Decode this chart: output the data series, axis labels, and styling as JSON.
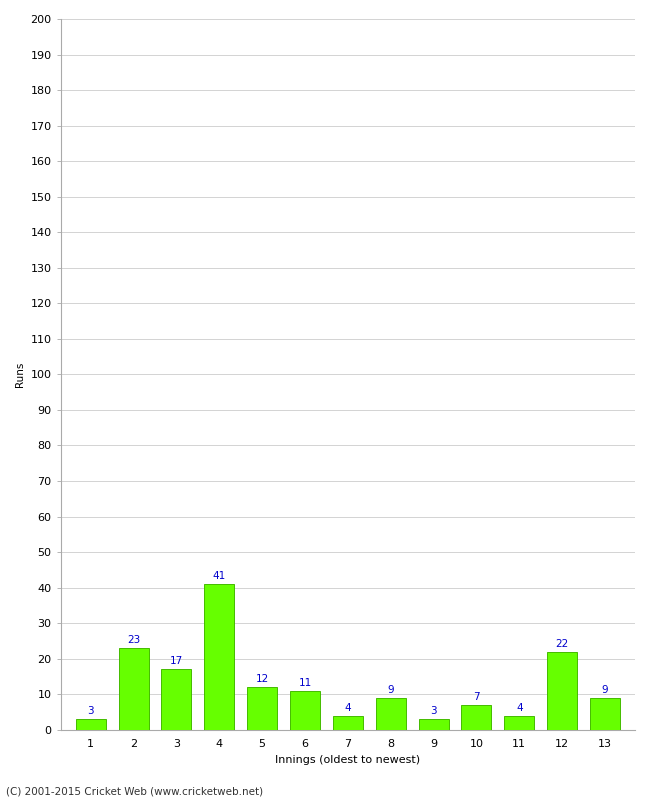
{
  "xlabel": "Innings (oldest to newest)",
  "ylabel": "Runs",
  "categories": [
    1,
    2,
    3,
    4,
    5,
    6,
    7,
    8,
    9,
    10,
    11,
    12,
    13
  ],
  "values": [
    3,
    23,
    17,
    41,
    12,
    11,
    4,
    9,
    3,
    7,
    4,
    22,
    9
  ],
  "bar_color": "#66ff00",
  "bar_edge_color": "#44bb00",
  "ylim": [
    0,
    200
  ],
  "yticks": [
    0,
    10,
    20,
    30,
    40,
    50,
    60,
    70,
    80,
    90,
    100,
    110,
    120,
    130,
    140,
    150,
    160,
    170,
    180,
    190,
    200
  ],
  "label_color": "#0000cc",
  "label_fontsize": 7.5,
  "axis_fontsize": 8,
  "ylabel_fontsize": 7.5,
  "xlabel_fontsize": 8,
  "footer_text": "(C) 2001-2015 Cricket Web (www.cricketweb.net)",
  "footer_fontsize": 7.5,
  "background_color": "#ffffff",
  "grid_color": "#cccccc"
}
